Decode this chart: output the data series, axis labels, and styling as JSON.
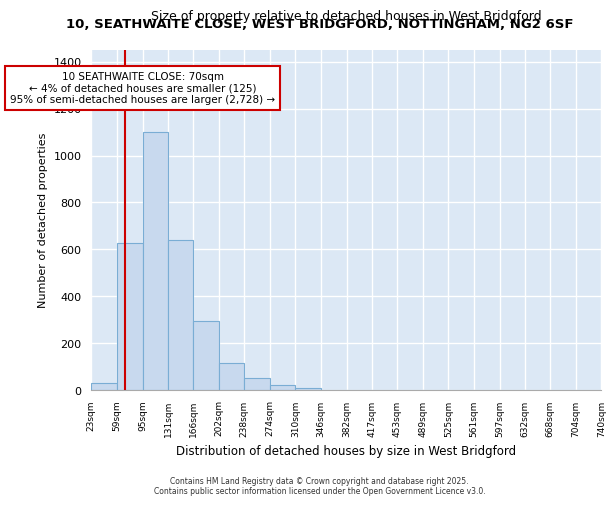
{
  "title1": "10, SEATHWAITE CLOSE, WEST BRIDGFORD, NOTTINGHAM, NG2 6SF",
  "title2": "Size of property relative to detached houses in West Bridgford",
  "xlabel": "Distribution of detached houses by size in West Bridgford",
  "ylabel": "Number of detached properties",
  "bin_edges": [
    23,
    59,
    95,
    131,
    166,
    202,
    238,
    274,
    310,
    346,
    382,
    417,
    453,
    489,
    525,
    561,
    597,
    632,
    668,
    704,
    740
  ],
  "bar_heights": [
    30,
    625,
    1100,
    640,
    295,
    115,
    50,
    20,
    10,
    0,
    0,
    0,
    0,
    0,
    0,
    0,
    0,
    0,
    0,
    0
  ],
  "bar_color": "#c8d9ee",
  "bar_edge_color": "#7aadd4",
  "property_size": 70,
  "red_line_color": "#cc0000",
  "annotation_line1": "10 SEATHWAITE CLOSE: 70sqm",
  "annotation_line2": "← 4% of detached houses are smaller (125)",
  "annotation_line3": "95% of semi-detached houses are larger (2,728) →",
  "annotation_box_color": "#ffffff",
  "annotation_box_edge_color": "#cc0000",
  "ylim": [
    0,
    1450
  ],
  "yticks": [
    0,
    200,
    400,
    600,
    800,
    1000,
    1200,
    1400
  ],
  "plot_bg_color": "#dce8f5",
  "fig_bg_color": "#ffffff",
  "grid_color": "#ffffff",
  "footnote1": "Contains HM Land Registry data © Crown copyright and database right 2025.",
  "footnote2": "Contains public sector information licensed under the Open Government Licence v3.0."
}
